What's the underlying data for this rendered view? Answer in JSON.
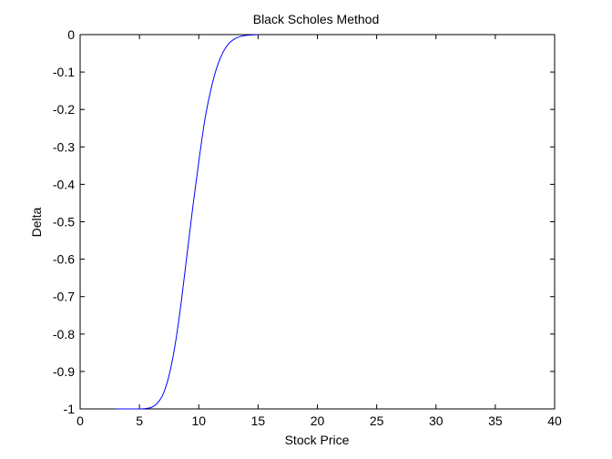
{
  "chart_data": {
    "type": "line",
    "title": "Black Scholes Method",
    "xlabel": "Stock Price",
    "ylabel": "Delta",
    "xlim": [
      0,
      40
    ],
    "ylim": [
      -1,
      0
    ],
    "xticks": [
      0,
      5,
      10,
      15,
      20,
      25,
      30,
      35,
      40
    ],
    "yticks": [
      0,
      -0.1,
      -0.2,
      -0.3,
      -0.4,
      -0.5,
      -0.6,
      -0.7,
      -0.8,
      -0.9,
      -1
    ],
    "grid": false,
    "legend": "none",
    "line_color": "#0000ff",
    "series": [
      {
        "x": [
          3,
          4,
          5,
          5.5,
          6,
          6.5,
          7,
          7.5,
          8,
          8.5,
          9,
          9.5,
          10,
          10.5,
          11,
          11.5,
          12,
          12.5,
          13,
          13.5,
          14,
          14.5,
          15
        ],
        "values": [
          -1,
          -1,
          -1,
          -0.999,
          -0.996,
          -0.985,
          -0.96,
          -0.91,
          -0.83,
          -0.72,
          -0.59,
          -0.46,
          -0.34,
          -0.23,
          -0.15,
          -0.09,
          -0.05,
          -0.025,
          -0.012,
          -0.005,
          -0.002,
          -0.001,
          0
        ]
      }
    ]
  }
}
